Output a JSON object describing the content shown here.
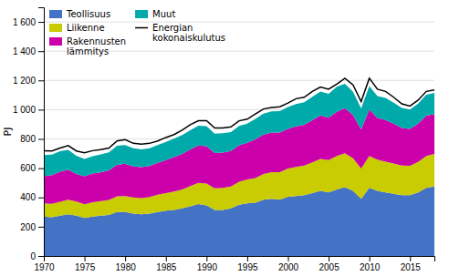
{
  "chart_data": {
    "type": "area",
    "stacked": true,
    "y_label": "PJ",
    "x": [
      1970,
      1971,
      1972,
      1973,
      1974,
      1975,
      1976,
      1977,
      1978,
      1979,
      1980,
      1981,
      1982,
      1983,
      1984,
      1985,
      1986,
      1987,
      1988,
      1989,
      1990,
      1991,
      1992,
      1993,
      1994,
      1995,
      1996,
      1997,
      1998,
      1999,
      2000,
      2001,
      2002,
      2003,
      2004,
      2005,
      2006,
      2007,
      2008,
      2009,
      2010,
      2011,
      2012,
      2013,
      2014,
      2015,
      2016,
      2017,
      2018
    ],
    "series": [
      {
        "name": "Teollisuus",
        "color": "#4472c4",
        "values": [
          270,
          265,
          275,
          285,
          275,
          260,
          270,
          275,
          280,
          300,
          300,
          290,
          285,
          290,
          300,
          310,
          315,
          325,
          340,
          355,
          345,
          315,
          315,
          325,
          350,
          360,
          365,
          385,
          390,
          385,
          405,
          410,
          415,
          430,
          445,
          435,
          455,
          470,
          445,
          390,
          465,
          445,
          435,
          425,
          415,
          415,
          435,
          465,
          475
        ]
      },
      {
        "name": "Liikenne",
        "color": "#c8cc00",
        "values": [
          90,
          92,
          96,
          100,
          97,
          93,
          97,
          100,
          103,
          108,
          110,
          110,
          110,
          113,
          118,
          120,
          125,
          130,
          138,
          145,
          150,
          147,
          150,
          150,
          157,
          163,
          168,
          175,
          183,
          188,
          193,
          198,
          203,
          210,
          218,
          220,
          228,
          232,
          223,
          208,
          218,
          213,
          210,
          207,
          203,
          202,
          208,
          218,
          223
        ]
      },
      {
        "name": "Rakennusten\nlämmitys",
        "color": "#cc00aa",
        "values": [
          185,
          195,
          205,
          205,
          188,
          192,
          197,
          197,
          202,
          215,
          220,
          212,
          212,
          212,
          218,
          226,
          236,
          242,
          250,
          255,
          255,
          242,
          242,
          242,
          250,
          250,
          264,
          270,
          270,
          270,
          270,
          278,
          278,
          288,
          298,
          290,
          303,
          308,
          295,
          266,
          318,
          285,
          285,
          272,
          257,
          252,
          262,
          276,
          272
        ]
      },
      {
        "name": "Muut",
        "color": "#00aaaa",
        "values": [
          145,
          140,
          140,
          135,
          125,
          118,
          118,
          122,
          124,
          130,
          128,
          124,
          122,
          122,
          122,
          124,
          126,
          129,
          132,
          136,
          138,
          132,
          132,
          130,
          132,
          132,
          140,
          143,
          145,
          147,
          150,
          153,
          155,
          160,
          163,
          163,
          170,
          167,
          160,
          145,
          160,
          150,
          150,
          143,
          137,
          132,
          137,
          143,
          145
        ]
      },
      {
        "name": "Energian\nkokonaiskulutus",
        "type": "line",
        "color": "#000000",
        "values": [
          720,
          718,
          738,
          755,
          718,
          705,
          720,
          727,
          738,
          786,
          795,
          770,
          765,
          770,
          786,
          810,
          830,
          860,
          897,
          925,
          925,
          875,
          875,
          882,
          924,
          935,
          970,
          1005,
          1015,
          1020,
          1045,
          1075,
          1085,
          1125,
          1155,
          1140,
          1175,
          1215,
          1170,
          1055,
          1215,
          1140,
          1125,
          1085,
          1040,
          1025,
          1065,
          1125,
          1135
        ]
      }
    ],
    "xlim": [
      1970,
      2018
    ],
    "xticks": [
      1970,
      1975,
      1980,
      1985,
      1990,
      1995,
      2000,
      2005,
      2010,
      2015
    ],
    "ylim": [
      0,
      1700
    ],
    "yticks": [
      0,
      200,
      400,
      600,
      800,
      {
        "value": 1000,
        "label": "1 000"
      },
      {
        "value": 1200,
        "label": "1 200"
      },
      {
        "value": 1400,
        "label": "1 400"
      },
      {
        "value": 1600,
        "label": "1 600"
      }
    ],
    "grid": true,
    "legend": "upper-left"
  }
}
